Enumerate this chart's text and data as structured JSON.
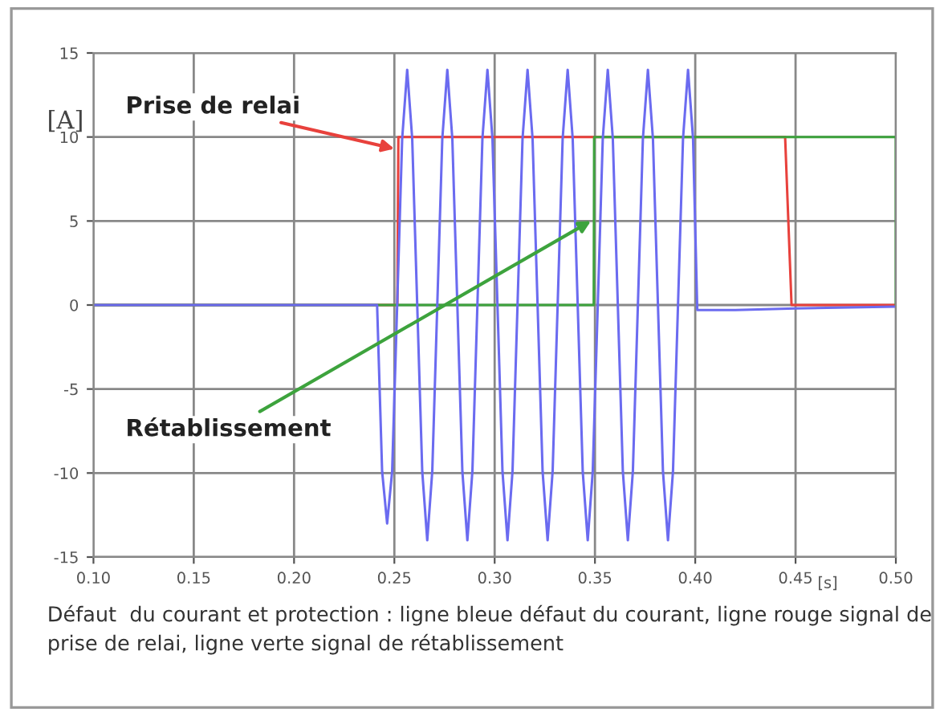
{
  "chart_data": {
    "type": "line",
    "xlabel": "[s]",
    "ylabel": "[A]",
    "xlim": [
      0.1,
      0.5
    ],
    "ylim": [
      -15,
      15
    ],
    "xticks": [
      {
        "value": 0.1,
        "label": "0.10"
      },
      {
        "value": 0.15,
        "label": "0.15"
      },
      {
        "value": 0.2,
        "label": "0.20"
      },
      {
        "value": 0.25,
        "label": "0.25"
      },
      {
        "value": 0.3,
        "label": "0.30"
      },
      {
        "value": 0.35,
        "label": "0.35"
      },
      {
        "value": 0.4,
        "label": "0.40"
      },
      {
        "value": 0.45,
        "label": "0.45"
      },
      {
        "value": 0.5,
        "label": "0.50"
      }
    ],
    "yticks": [
      -15,
      -10,
      -5,
      0,
      5,
      10,
      15
    ],
    "grid": true,
    "marker": "none",
    "line_style": "solid",
    "series": [
      {
        "color": "#e8413c",
        "x": [
          0.1,
          0.2515,
          0.252,
          0.4448,
          0.448,
          0.5
        ],
        "values": [
          0,
          0,
          10,
          10,
          0,
          0
        ]
      },
      {
        "color": "#3da33d",
        "x": [
          0.1,
          0.3494,
          0.3496,
          0.5,
          0.5
        ],
        "values": [
          0,
          0,
          10,
          10,
          0
        ]
      },
      {
        "color": "#6b6bf0",
        "x": [
          0.1,
          0.236,
          0.2414,
          0.2439,
          0.2464,
          0.2489,
          0.2514,
          0.2539,
          0.2564,
          0.2589,
          0.2614,
          0.2639,
          0.2664,
          0.2689,
          0.2714,
          0.2739,
          0.2764,
          0.2789,
          0.2814,
          0.2839,
          0.2864,
          0.2889,
          0.2914,
          0.2939,
          0.2964,
          0.2989,
          0.3014,
          0.3039,
          0.3064,
          0.3089,
          0.3114,
          0.3139,
          0.3164,
          0.3189,
          0.3214,
          0.3239,
          0.3264,
          0.3289,
          0.3314,
          0.3339,
          0.3364,
          0.3389,
          0.3414,
          0.3439,
          0.3464,
          0.3489,
          0.3514,
          0.3539,
          0.3564,
          0.3589,
          0.3614,
          0.3639,
          0.3664,
          0.3689,
          0.3714,
          0.3739,
          0.3764,
          0.3789,
          0.3814,
          0.3839,
          0.3864,
          0.3889,
          0.3914,
          0.3939,
          0.3964,
          0.3989,
          0.401,
          0.42,
          0.45,
          0.5
        ],
        "values": [
          0,
          0,
          0,
          -9.9,
          -13,
          -9.9,
          0,
          9.9,
          14,
          9.9,
          0,
          -9.9,
          -14,
          -9.9,
          0,
          9.9,
          14,
          9.9,
          0,
          -9.9,
          -14,
          -9.9,
          0,
          9.9,
          14,
          9.9,
          0,
          -9.9,
          -14,
          -9.9,
          0,
          9.9,
          14,
          9.9,
          0,
          -9.9,
          -14,
          -9.9,
          0,
          9.9,
          14,
          9.9,
          0,
          -9.9,
          -14,
          -9.9,
          0,
          9.9,
          14,
          9.9,
          0,
          -9.9,
          -14,
          -9.9,
          0,
          9.9,
          14,
          9.9,
          0,
          -9.9,
          -14,
          -9.9,
          0,
          9.9,
          14,
          9.9,
          -0.3,
          -0.3,
          -0.2,
          -0.1
        ]
      }
    ],
    "annotations": [
      {
        "text": "Prise de relai",
        "x": 0.25,
        "y": 9.3
      },
      {
        "text": "Rétablissement",
        "x": 0.348,
        "y": 5
      },
      "Défaut  du courant et protection : ligne bleue défaut du courant, ligne rouge signal de prise de relai, ligne verte signal de rétablissement"
    ]
  }
}
